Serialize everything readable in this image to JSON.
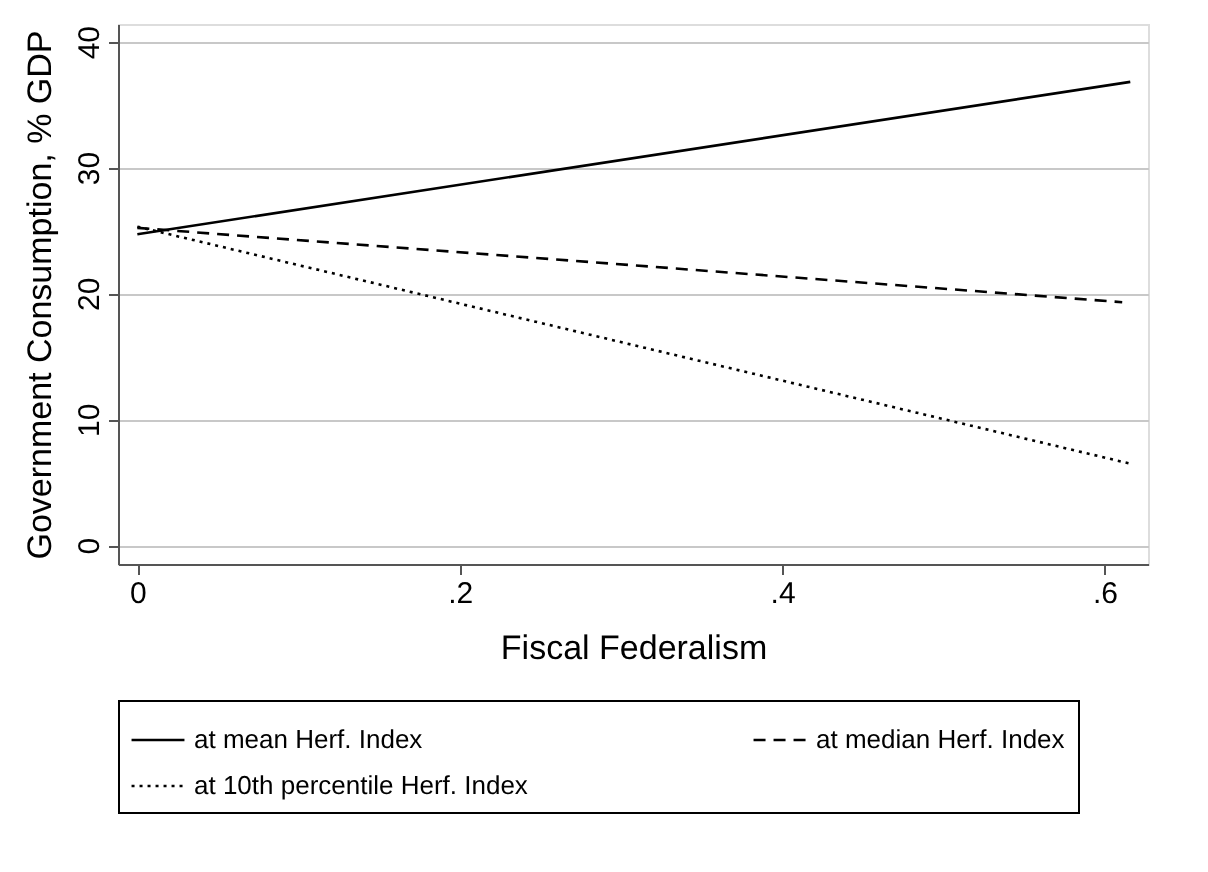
{
  "chart_data": {
    "type": "line",
    "xlabel": "Fiscal Federalism",
    "ylabel": "Government Consumption, % GDP",
    "xlim": [
      -0.012,
      0.627
    ],
    "ylim": [
      -1.5,
      41.4
    ],
    "xticks": [
      0,
      {
        "value": 0.2,
        "label": ".2"
      },
      {
        "value": 0.4,
        "label": ".4"
      },
      {
        "value": 0.6,
        "label": ".6"
      }
    ],
    "yticks": [
      0,
      10,
      20,
      30,
      40
    ],
    "grid": "y",
    "legend": "bottom",
    "series": [
      {
        "name": "at mean Herf. Index",
        "color": "#000000",
        "line_style": "solid",
        "x": [
          0,
          0.616
        ],
        "values": [
          24.7,
          36.8
        ]
      },
      {
        "name": "at median Herf. Index",
        "color": "#000000",
        "line_style": "dashed",
        "x": [
          0,
          0.611
        ],
        "values": [
          25.2,
          19.3
        ]
      },
      {
        "name": "at 10th percentile Herf. Index",
        "color": "#000000",
        "line_style": "dotted",
        "x": [
          0,
          0.615
        ],
        "values": [
          25.3,
          6.5
        ]
      }
    ]
  }
}
